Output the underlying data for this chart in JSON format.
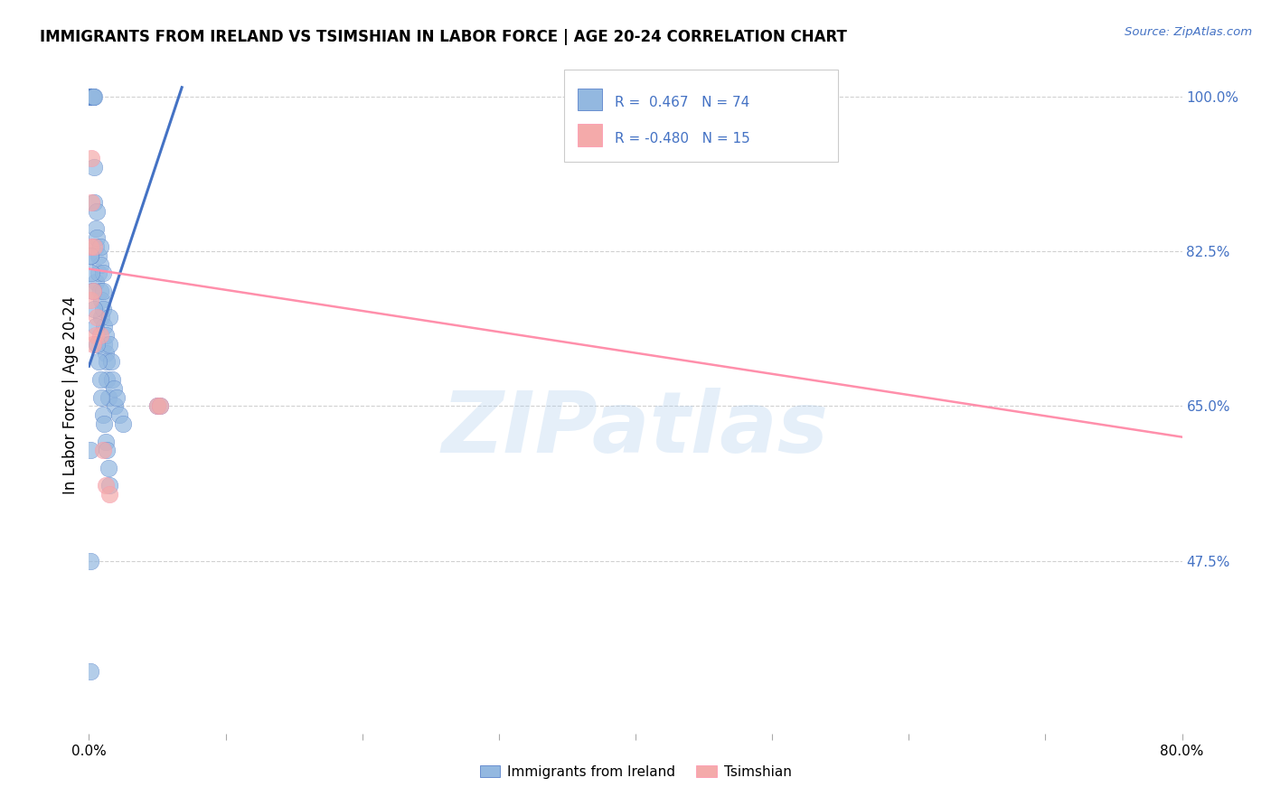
{
  "title": "IMMIGRANTS FROM IRELAND VS TSIMSHIAN IN LABOR FORCE | AGE 20-24 CORRELATION CHART",
  "source": "Source: ZipAtlas.com",
  "ylabel": "In Labor Force | Age 20-24",
  "xlim": [
    0.0,
    0.8
  ],
  "ylim": [
    0.28,
    1.045
  ],
  "right_yticks": [
    1.0,
    0.825,
    0.65,
    0.475
  ],
  "right_yticklabels": [
    "100.0%",
    "82.5%",
    "65.0%",
    "47.5%"
  ],
  "watermark": "ZIPatlas",
  "legend_r1": "R =  0.467",
  "legend_n1": "N = 74",
  "legend_r2": "R = -0.480",
  "legend_n2": "N = 15",
  "blue_color": "#93B8E0",
  "pink_color": "#F4AAAA",
  "blue_line_color": "#4472C4",
  "pink_line_color": "#FF8FAB",
  "blue_scatter_x": [
    0.001,
    0.001,
    0.001,
    0.001,
    0.001,
    0.001,
    0.001,
    0.001,
    0.001,
    0.001,
    0.002,
    0.002,
    0.002,
    0.002,
    0.002,
    0.003,
    0.003,
    0.003,
    0.003,
    0.004,
    0.004,
    0.004,
    0.005,
    0.005,
    0.005,
    0.006,
    0.006,
    0.007,
    0.007,
    0.008,
    0.008,
    0.008,
    0.009,
    0.009,
    0.01,
    0.01,
    0.01,
    0.011,
    0.011,
    0.012,
    0.012,
    0.013,
    0.013,
    0.014,
    0.015,
    0.015,
    0.016,
    0.017,
    0.018,
    0.019,
    0.02,
    0.022,
    0.025,
    0.05,
    0.052,
    0.001,
    0.002,
    0.003,
    0.004,
    0.005,
    0.006,
    0.007,
    0.008,
    0.009,
    0.01,
    0.011,
    0.012,
    0.013,
    0.014,
    0.015,
    0.001,
    0.001,
    0.001,
    0.001
  ],
  "blue_scatter_y": [
    1.0,
    1.0,
    1.0,
    1.0,
    1.0,
    1.0,
    1.0,
    1.0,
    1.0,
    1.0,
    1.0,
    1.0,
    1.0,
    1.0,
    1.0,
    1.0,
    1.0,
    1.0,
    1.0,
    1.0,
    0.92,
    0.88,
    0.85,
    0.83,
    0.79,
    0.87,
    0.84,
    0.82,
    0.8,
    0.83,
    0.81,
    0.78,
    0.77,
    0.75,
    0.8,
    0.78,
    0.76,
    0.74,
    0.72,
    0.73,
    0.71,
    0.7,
    0.68,
    0.66,
    0.75,
    0.72,
    0.7,
    0.68,
    0.67,
    0.65,
    0.66,
    0.64,
    0.63,
    0.65,
    0.65,
    0.82,
    0.8,
    0.78,
    0.76,
    0.74,
    0.72,
    0.7,
    0.68,
    0.66,
    0.64,
    0.63,
    0.61,
    0.6,
    0.58,
    0.56,
    0.475,
    0.35,
    0.6,
    0.82
  ],
  "pink_scatter_x": [
    0.001,
    0.001,
    0.002,
    0.002,
    0.003,
    0.004,
    0.005,
    0.006,
    0.008,
    0.01,
    0.012,
    0.015,
    0.05,
    0.052,
    0.003
  ],
  "pink_scatter_y": [
    0.77,
    0.83,
    0.88,
    0.93,
    0.78,
    0.83,
    0.73,
    0.75,
    0.73,
    0.6,
    0.56,
    0.55,
    0.65,
    0.65,
    0.72
  ],
  "blue_trend_x": [
    0.0,
    0.068
  ],
  "blue_trend_y": [
    0.695,
    1.01
  ],
  "pink_trend_x": [
    0.0,
    0.8
  ],
  "pink_trend_y": [
    0.805,
    0.615
  ]
}
